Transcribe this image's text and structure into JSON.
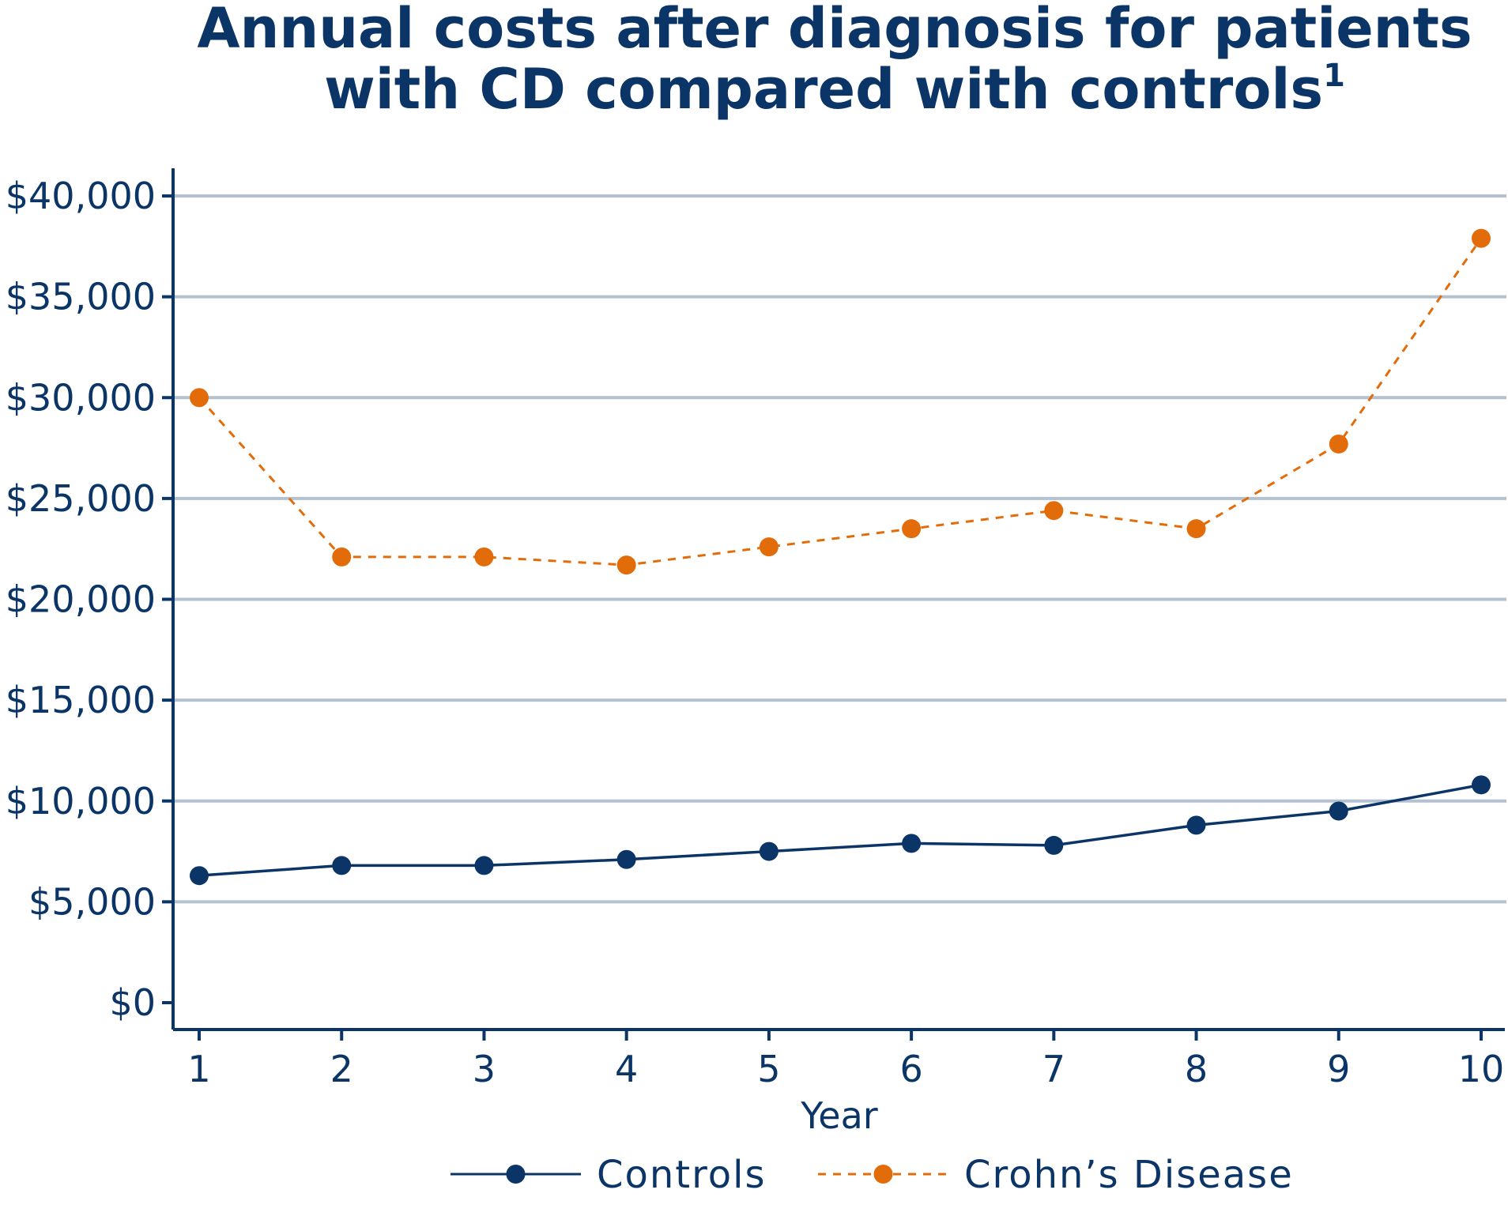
{
  "chart_data": {
    "type": "line",
    "title_lines": [
      "Annual costs after diagnosis for patients",
      "with CD compared with controls"
    ],
    "title_superscript": "1",
    "xlabel": "Year",
    "ylabel": "",
    "x": [
      1,
      2,
      3,
      4,
      5,
      6,
      7,
      8,
      9,
      10
    ],
    "x_tick_labels": [
      "1",
      "2",
      "3",
      "4",
      "5",
      "6",
      "7",
      "8",
      "9",
      "10"
    ],
    "ylim": [
      0,
      40000
    ],
    "y_ticks": [
      0,
      5000,
      10000,
      15000,
      20000,
      25000,
      30000,
      35000,
      40000
    ],
    "y_tick_labels": [
      "$0",
      "$5,000",
      "$10,000",
      "$15,000",
      "$20,000",
      "$25,000",
      "$30,000",
      "$35,000",
      "$40,000"
    ],
    "grid": "horizontal",
    "legend_placement": "bottom",
    "series": [
      {
        "name": "Controls",
        "color": "#0b3567",
        "line_style": "solid",
        "marker": "circle",
        "values": [
          6300,
          6800,
          6800,
          7100,
          7500,
          7900,
          7800,
          8800,
          9500,
          10800
        ]
      },
      {
        "name": "Crohn’s Disease",
        "color": "#e36c0a",
        "line_style": "dashed",
        "marker": "circle",
        "values": [
          30000,
          22100,
          22100,
          21700,
          22600,
          23500,
          24400,
          23500,
          27700,
          37900
        ]
      }
    ],
    "colors": {
      "text": "#0b3567",
      "grid": "#b3c1d1",
      "axis": "#0b3567"
    }
  }
}
